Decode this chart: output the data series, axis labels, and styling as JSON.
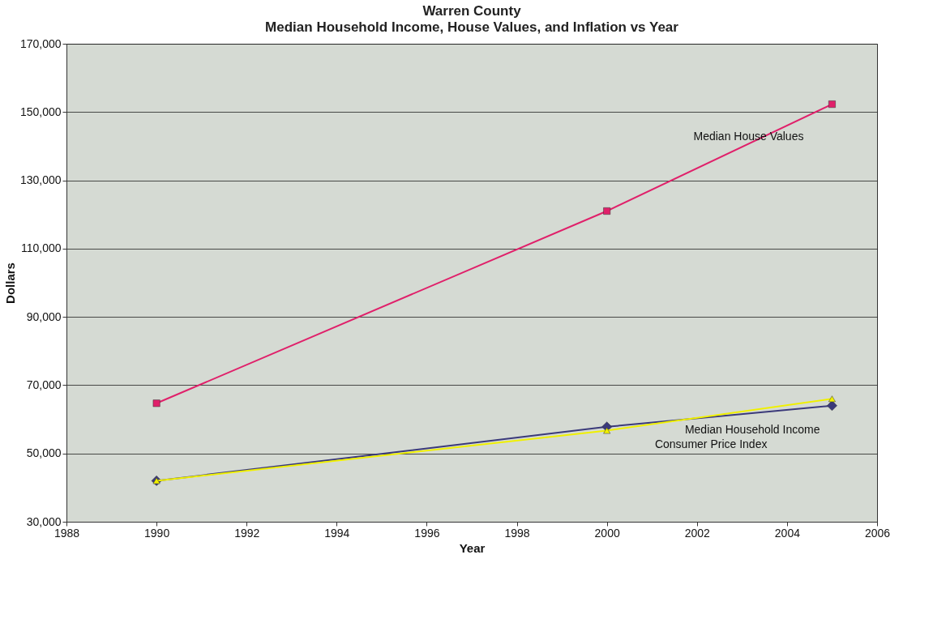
{
  "chart_data": {
    "type": "line",
    "title": "Warren County",
    "subtitle": "Median  Household Income, House Values, and Inflation vs Year",
    "xlabel": "Year",
    "ylabel": "Dollars",
    "x": [
      1990,
      2000,
      2005
    ],
    "series": [
      {
        "name": "Median House Values",
        "color": "#e0206a",
        "marker": "square",
        "values": [
          64700,
          121000,
          152300
        ]
      },
      {
        "name": "Median Household Income",
        "color": "#3b3a7a",
        "marker": "diamond",
        "values": [
          42000,
          57800,
          64000
        ]
      },
      {
        "name": "Consumer Price Index",
        "color": "#f0f000",
        "marker": "triangle",
        "values": [
          42000,
          56700,
          66000
        ]
      }
    ],
    "xlim": [
      1988,
      2006
    ],
    "xticks": [
      1988,
      1990,
      1992,
      1994,
      1996,
      1998,
      2000,
      2002,
      2004,
      2006
    ],
    "ylim": [
      30000,
      170000
    ],
    "yticks": [
      {
        "value": 30000,
        "label": "30,000"
      },
      {
        "value": 50000,
        "label": "50,000"
      },
      {
        "value": 70000,
        "label": "70,000"
      },
      {
        "value": 90000,
        "label": "90,000"
      },
      {
        "value": 110000,
        "label": "110,000"
      },
      {
        "value": 130000,
        "label": "130,000"
      },
      {
        "value": 150000,
        "label": "150,000"
      },
      {
        "value": 170000,
        "label": "170,000"
      }
    ],
    "grid": "y",
    "legend": false,
    "line_style": "solid"
  }
}
